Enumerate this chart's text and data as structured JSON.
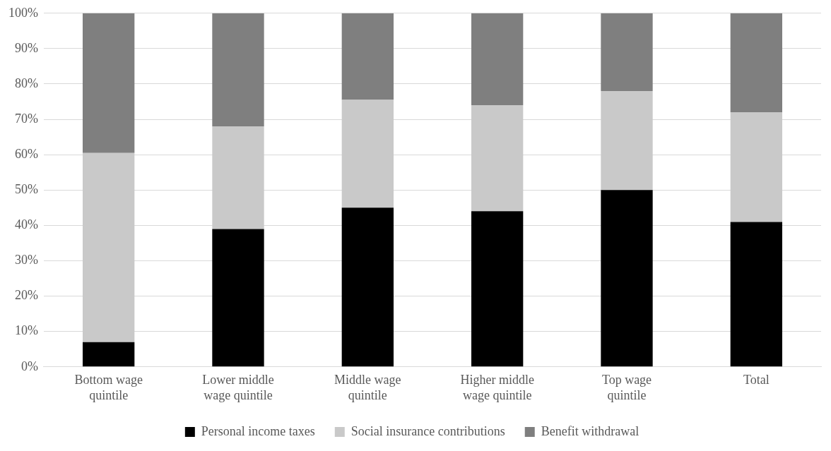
{
  "chart_data": {
    "type": "bar",
    "stacked": true,
    "categories": [
      "Bottom wage quintile",
      "Lower middle wage quintile",
      "Middle wage quintile",
      "Higher middle wage quintile",
      "Top wage quintile",
      "Total"
    ],
    "series": [
      {
        "name": "Personal income taxes",
        "color": "#000000",
        "values": [
          7,
          39,
          45,
          44,
          50,
          41
        ]
      },
      {
        "name": "Social insurance contributions",
        "color": "#c9c9c9",
        "values": [
          53.5,
          29,
          30.5,
          30,
          28,
          31
        ]
      },
      {
        "name": "Benefit withdrawal",
        "color": "#7f7f7f",
        "values": [
          39.5,
          32,
          24.5,
          26,
          22,
          28
        ]
      }
    ],
    "ylim": [
      0,
      100
    ],
    "yticks": [
      {
        "value": 0,
        "label": "0%"
      },
      {
        "value": 10,
        "label": "10%"
      },
      {
        "value": 20,
        "label": "20%"
      },
      {
        "value": 30,
        "label": "30%"
      },
      {
        "value": 40,
        "label": "40%"
      },
      {
        "value": 50,
        "label": "50%"
      },
      {
        "value": 60,
        "label": "60%"
      },
      {
        "value": 70,
        "label": "70%"
      },
      {
        "value": 80,
        "label": "80%"
      },
      {
        "value": 90,
        "label": "90%"
      },
      {
        "value": 100,
        "label": "100%"
      }
    ],
    "grid": "y",
    "legend": "bottom"
  }
}
